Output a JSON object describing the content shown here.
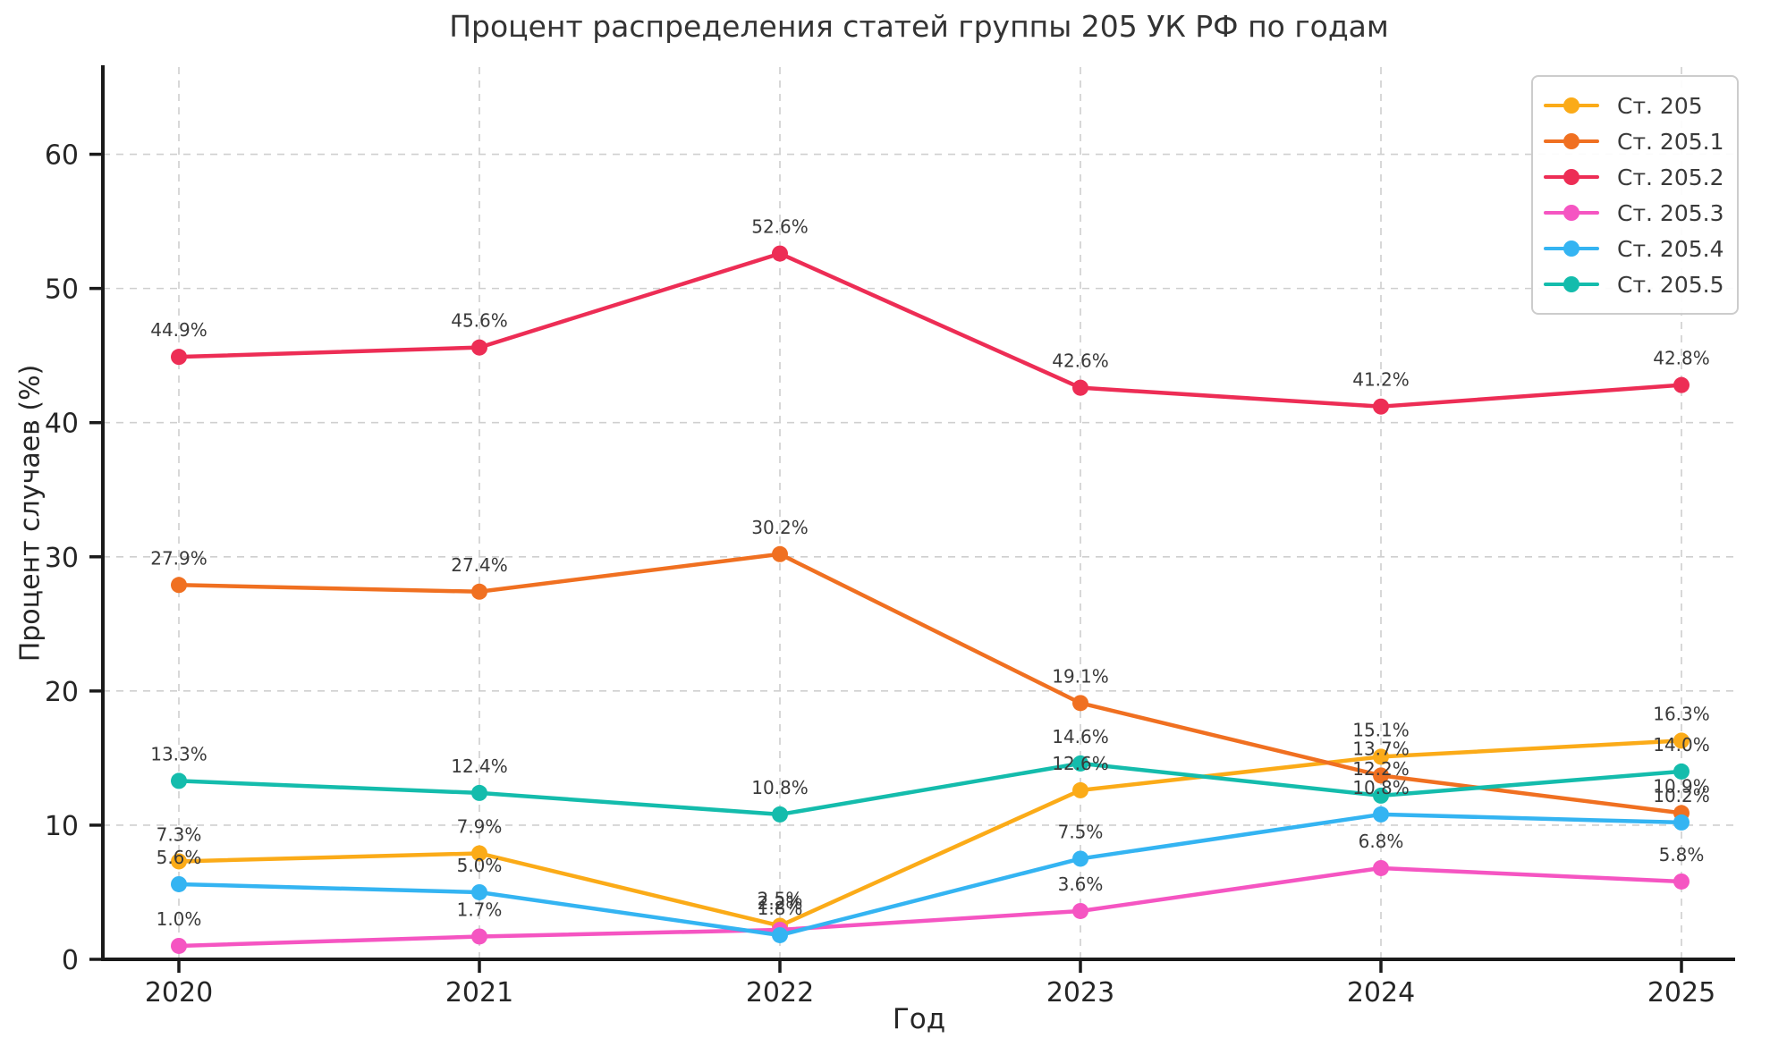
{
  "chart_data": {
    "type": "line",
    "title": "Процент распределения статей группы 205 УК РФ по годам",
    "xlabel": "Год",
    "ylabel": "Процент случаев (%)",
    "categories": [
      "2020",
      "2021",
      "2022",
      "2023",
      "2024",
      "2025"
    ],
    "yticks": [
      0,
      10,
      20,
      30,
      40,
      50,
      60
    ],
    "ylim": [
      0,
      66.5
    ],
    "grid": true,
    "grid_style": "dashed",
    "legend_position": "upper right",
    "data_label_format": "one decimal + %",
    "series": [
      {
        "name": "Ст. 205",
        "color": "#FBAB18",
        "values": [
          7.3,
          7.9,
          2.5,
          12.6,
          15.1,
          16.3
        ]
      },
      {
        "name": "Ст. 205.1",
        "color": "#F07021",
        "values": [
          27.9,
          27.4,
          30.2,
          19.1,
          13.7,
          10.9
        ]
      },
      {
        "name": "Ст. 205.2",
        "color": "#ED2D55",
        "values": [
          44.9,
          45.6,
          52.6,
          42.6,
          41.2,
          42.8
        ]
      },
      {
        "name": "Ст. 205.3",
        "color": "#F555C2",
        "values": [
          1.0,
          1.7,
          2.2,
          3.6,
          6.8,
          5.8
        ]
      },
      {
        "name": "Ст. 205.4",
        "color": "#34B4F2",
        "values": [
          5.6,
          5.0,
          1.8,
          7.5,
          10.8,
          10.2
        ]
      },
      {
        "name": "Ст. 205.5",
        "color": "#14BCAC",
        "values": [
          13.3,
          12.4,
          10.8,
          14.6,
          12.2,
          14.0
        ]
      }
    ]
  }
}
